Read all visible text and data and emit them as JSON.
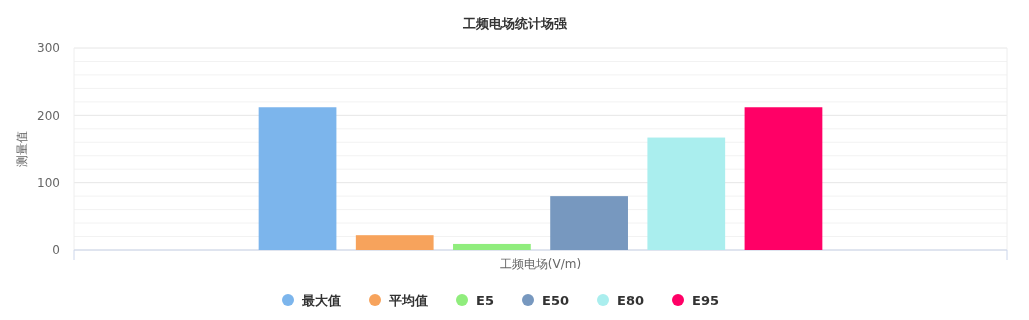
{
  "chart_data": {
    "type": "bar",
    "title": "工频电场统计场强",
    "xlabel": "工频电场(V/m)",
    "ylabel": "测量值",
    "categories": [
      null
    ],
    "series": [
      {
        "name": "最大值",
        "color": "#7cb5ec",
        "values": [
          212
        ]
      },
      {
        "name": "平均值",
        "color": "#f7a35c",
        "values": [
          22
        ]
      },
      {
        "name": "E5",
        "color": "#90ed7d",
        "values": [
          9
        ]
      },
      {
        "name": "E50",
        "color": "#7798bf",
        "values": [
          80
        ]
      },
      {
        "name": "E80",
        "color": "#aaeeee",
        "values": [
          167
        ]
      },
      {
        "name": "E95",
        "color": "#ff0066",
        "values": [
          212
        ]
      }
    ],
    "ylim": [
      0,
      300
    ],
    "yticks": [
      0,
      {
        "value": 20,
        "label": null
      },
      {
        "value": 40,
        "label": null
      },
      {
        "value": 60,
        "label": null
      },
      {
        "value": 80,
        "label": null
      },
      100,
      {
        "value": 120,
        "label": null
      },
      {
        "value": 140,
        "label": null
      },
      {
        "value": 160,
        "label": null
      },
      {
        "value": 180,
        "label": null
      },
      200,
      {
        "value": 220,
        "label": null
      },
      {
        "value": 240,
        "label": null
      },
      {
        "value": 260,
        "label": null
      },
      {
        "value": 280,
        "label": null
      },
      300
    ],
    "grid": "y",
    "legend": "bottom"
  }
}
